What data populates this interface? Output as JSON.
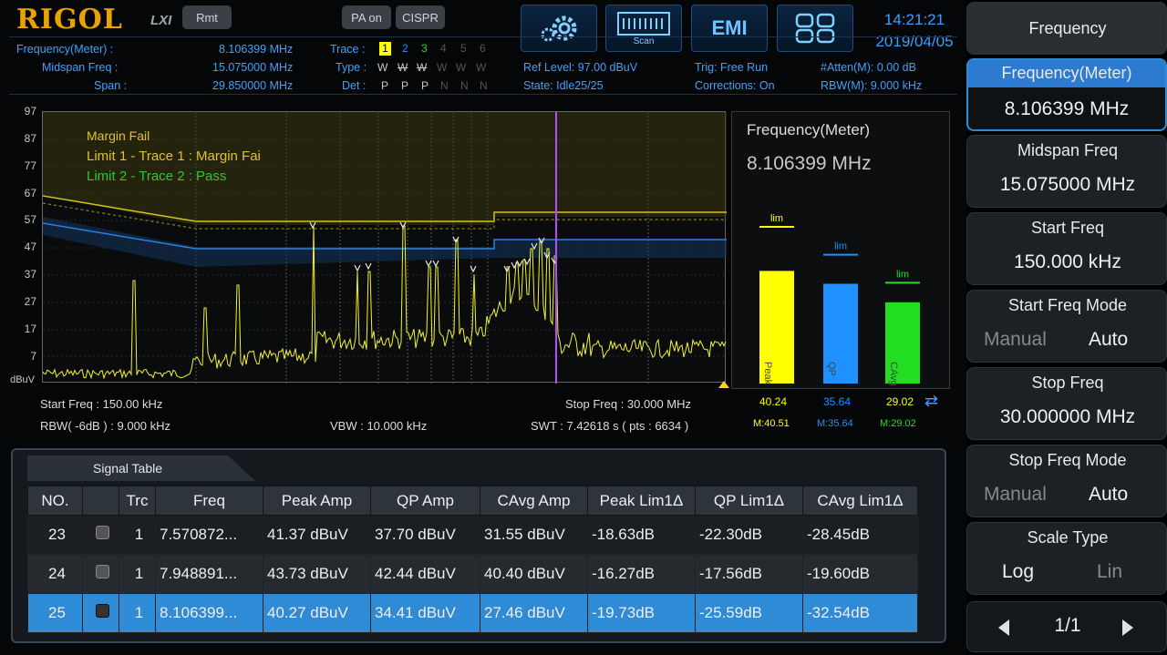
{
  "header": {
    "brand": "RIGOL",
    "brand_suffix": "LXI",
    "rmt": "Rmt",
    "pa": "PA on",
    "cispr": "CISPR",
    "scan_label": "Scan",
    "emi_label": "EMI",
    "time": "14:21:21",
    "date": "2019/04/05"
  },
  "info": {
    "freq_meter_label": "Frequency(Meter) :",
    "freq_meter_value": "8.106399 MHz",
    "midspan_label": "Midspan Freq :",
    "midspan_value": "15.075000 MHz",
    "span_label": "Span :",
    "span_value": "29.850000 MHz",
    "trace_label": "Trace :",
    "type_label": "Type :",
    "det_label": "Det :",
    "trace_nums": [
      "1",
      "2",
      "3",
      "4",
      "5",
      "6"
    ],
    "types": [
      "W",
      "W",
      "W",
      "W",
      "W",
      "W"
    ],
    "dets": [
      "P",
      "P",
      "P",
      "N",
      "N",
      "N"
    ],
    "ref_level": "Ref Level: 97.00 dBuV",
    "state": "State: Idle25/25",
    "trig": "Trig: Free Run",
    "corrections": "Corrections: On",
    "atten": "#Atten(M): 0.00 dB",
    "rbw": "RBW(M): 9.000 kHz"
  },
  "plot": {
    "y_ticks": [
      "97",
      "87",
      "77",
      "67",
      "57",
      "47",
      "37",
      "27",
      "17",
      "7"
    ],
    "y_unit": "dBuV",
    "margin_fail": "Margin Fail",
    "limit1": "Limit 1 - Trace 1 : Margin Fai",
    "limit2": "Limit 2 - Trace 2 : Pass",
    "start_freq": "Start Freq : 150.00 kHz",
    "stop_freq": "Stop Freq : 30.000 MHz",
    "rbw": "RBW( -6dB ) : 9.000 kHz",
    "vbw": "VBW : 10.000 kHz",
    "swt": "SWT : 7.42618 s ( pts : 6634 )"
  },
  "meter": {
    "title": "Frequency(Meter)",
    "value": "8.106399 MHz",
    "lim": "lim",
    "bars": [
      {
        "name": "Peak",
        "value": "40.24",
        "max": "M:40.51",
        "level": 40.24,
        "limit": 56,
        "color": "#ffff00"
      },
      {
        "name": "QP",
        "value": "35.64",
        "max": "M:35.64",
        "level": 35.64,
        "limit": 46,
        "color": "#1e90ff"
      },
      {
        "name": "CAvg",
        "value": "29.02",
        "max": "M:29.02",
        "level": 29.02,
        "limit": 36,
        "color": "#22dd22"
      }
    ]
  },
  "signal_table": {
    "title": "Signal Table",
    "columns": [
      "NO.",
      "",
      "Trc",
      "Freq",
      "Peak Amp",
      "QP Amp",
      "CAvg Amp",
      "Peak Lim1Δ",
      "QP Lim1Δ",
      "CAvg Lim1Δ"
    ],
    "rows": [
      [
        "23",
        "",
        "1",
        "7.570872...",
        "41.37 dBuV",
        "37.70 dBuV",
        "31.55 dBuV",
        "-18.63dB",
        "-22.30dB",
        "-28.45dB"
      ],
      [
        "24",
        "",
        "1",
        "7.948891...",
        "43.73 dBuV",
        "42.44 dBuV",
        "40.40 dBuV",
        "-16.27dB",
        "-17.56dB",
        "-19.60dB"
      ],
      [
        "25",
        "",
        "1",
        "8.106399...",
        "40.27 dBuV",
        "34.41 dBuV",
        "27.46 dBuV",
        "-19.73dB",
        "-25.59dB",
        "-32.54dB"
      ]
    ]
  },
  "menu": {
    "title": "Frequency",
    "freq_meter": {
      "label": "Frequency(Meter)",
      "value": "8.106399 MHz"
    },
    "midspan": {
      "label": "Midspan Freq",
      "value": "15.075000 MHz"
    },
    "start": {
      "label": "Start Freq",
      "value": "150.000 kHz"
    },
    "start_mode": {
      "label": "Start Freq Mode",
      "opt1": "Manual",
      "opt2": "Auto"
    },
    "stop": {
      "label": "Stop Freq",
      "value": "30.000000 MHz"
    },
    "stop_mode": {
      "label": "Stop Freq Mode",
      "opt1": "Manual",
      "opt2": "Auto"
    },
    "scale": {
      "label": "Scale Type",
      "opt1": "Log",
      "opt2": "Lin"
    },
    "page": "1/1"
  }
}
